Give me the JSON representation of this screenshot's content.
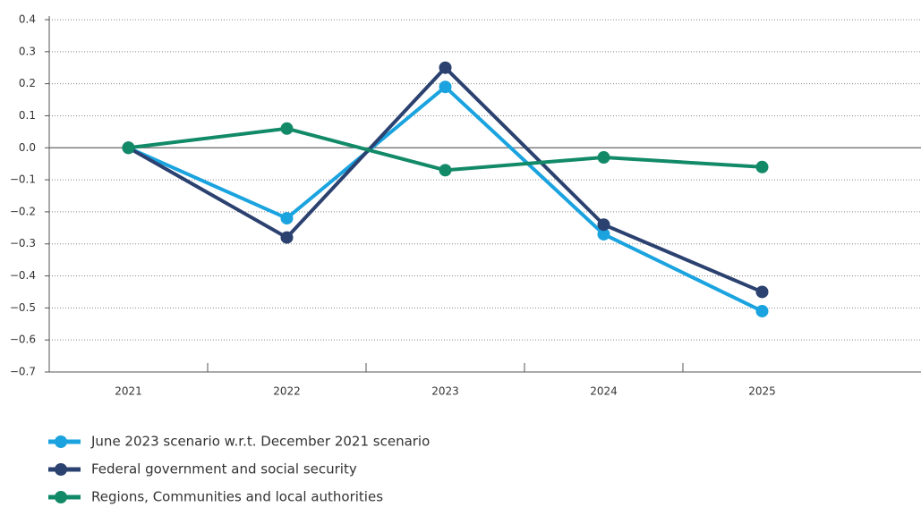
{
  "chart_data": {
    "type": "line",
    "categories": [
      "2021",
      "2022",
      "2023",
      "2024",
      "2025"
    ],
    "series": [
      {
        "name": "June 2023 scenario w.r.t. December 2021 scenario",
        "color": "#1aa3df",
        "values": [
          0,
          -0.22,
          0.19,
          -0.27,
          -0.51
        ]
      },
      {
        "name": "Federal government and social security",
        "color": "#2b416f",
        "values": [
          0,
          -0.28,
          0.25,
          -0.24,
          -0.45
        ]
      },
      {
        "name": "Regions, Communities and local authorities",
        "color": "#128a68",
        "values": [
          0,
          0.06,
          -0.07,
          -0.03,
          -0.06
        ]
      }
    ],
    "ylim": [
      -0.7,
      0.4
    ],
    "yticks": [
      0.4,
      0.3,
      0.2,
      0.1,
      {
        "value": 0,
        "label": "0.0"
      },
      {
        "value": -0.1,
        "label": "−0.1"
      },
      {
        "value": -0.2,
        "label": "−0.2"
      },
      {
        "value": -0.3,
        "label": "−0.3"
      },
      {
        "value": -0.4,
        "label": "−0.4"
      },
      {
        "value": -0.5,
        "label": "−0.5"
      },
      {
        "value": -0.6,
        "label": "−0.6"
      },
      {
        "value": -0.7,
        "label": "−0.7"
      }
    ],
    "grid": true
  }
}
